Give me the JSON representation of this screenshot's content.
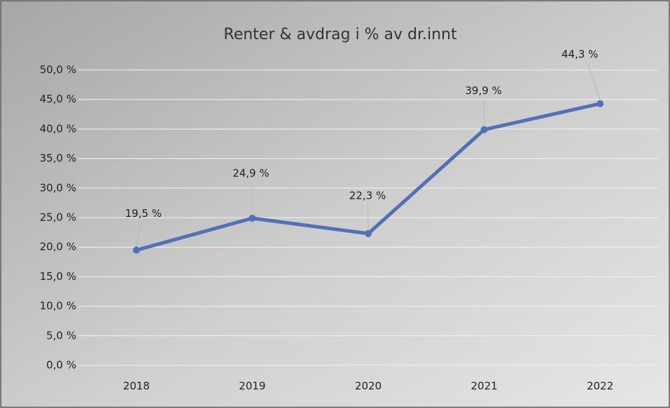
{
  "chart_data": {
    "type": "line",
    "title": "Renter & avdrag i % av dr.innt",
    "categories": [
      "2018",
      "2019",
      "2020",
      "2021",
      "2022"
    ],
    "series": [
      {
        "name": "Renter & avdrag i % av dr.innt",
        "color": "#5470b5",
        "values": [
          19.5,
          24.9,
          22.3,
          39.9,
          44.3
        ],
        "value_labels": [
          "19,5 %",
          "24,9 %",
          "22,3 %",
          "39,9 %",
          "44,3 %"
        ]
      }
    ],
    "ylim": [
      0,
      50
    ],
    "yticks": [
      {
        "value": 0,
        "label": "0,0 %"
      },
      {
        "value": 5,
        "label": "5,0 %"
      },
      {
        "value": 10,
        "label": "10,0 %"
      },
      {
        "value": 15,
        "label": "15,0 %"
      },
      {
        "value": 20,
        "label": "20,0 %"
      },
      {
        "value": 25,
        "label": "25,0 %"
      },
      {
        "value": 30,
        "label": "30,0 %"
      },
      {
        "value": 35,
        "label": "35,0 %"
      },
      {
        "value": 40,
        "label": "40,0 %"
      },
      {
        "value": 45,
        "label": "45,0 %"
      },
      {
        "value": 50,
        "label": "50,0 %"
      }
    ],
    "grid": true
  }
}
